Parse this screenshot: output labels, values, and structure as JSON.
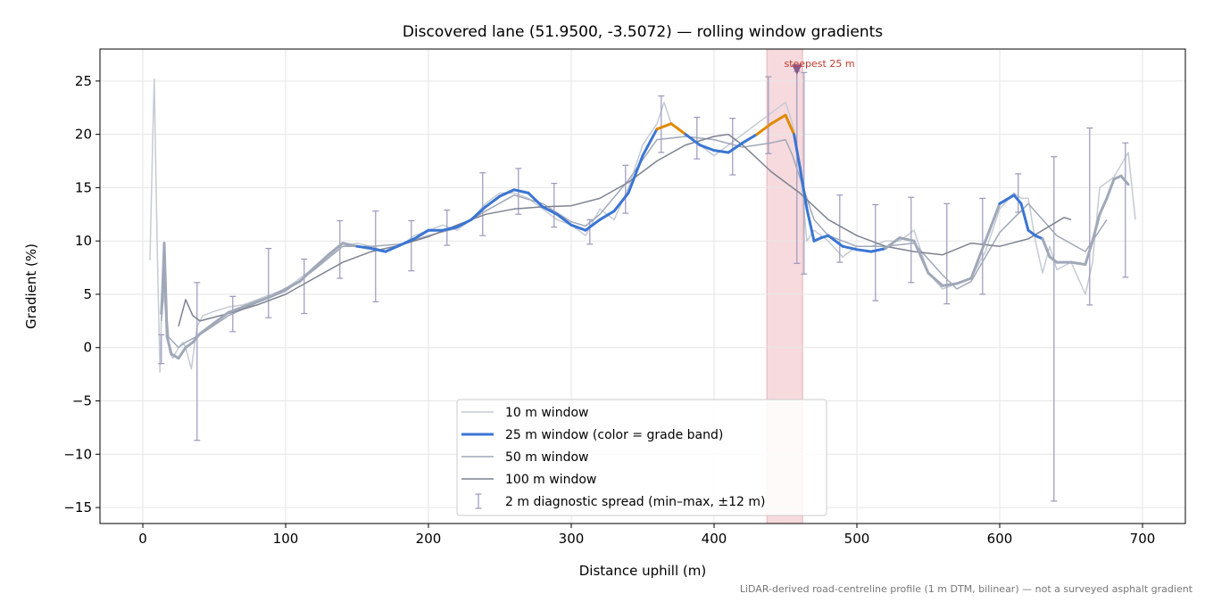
{
  "chart_data": {
    "type": "line",
    "title": "Discovered lane (51.9500, -3.5072) — rolling window gradients",
    "xlabel": "Distance uphill (m)",
    "ylabel": "Gradient (%)",
    "xlim": [
      -30,
      730
    ],
    "ylim": [
      -16.5,
      28
    ],
    "xticks": [
      0,
      100,
      200,
      300,
      400,
      500,
      600,
      700
    ],
    "xtick_labels": [
      "0",
      "100",
      "200",
      "300",
      "400",
      "500",
      "600",
      "700"
    ],
    "yticks": [
      -15,
      -10,
      -5,
      0,
      5,
      10,
      15,
      20,
      25
    ],
    "ytick_labels": [
      "−15",
      "−10",
      "−5",
      "0",
      "5",
      "10",
      "15",
      "20",
      "25"
    ],
    "grid": true,
    "legend_position": "lower-center",
    "footnote": "LiDAR-derived road-centreline profile (1 m DTM, bilinear) — not a surveyed asphalt gradient",
    "steepest": {
      "label": "steepest 25 m",
      "x_start": 437,
      "x_end": 462,
      "marker": [
        458,
        26
      ],
      "color": "#c0392b"
    },
    "colors": {
      "w10": "#c5cbd3",
      "w25": "#3a75d4",
      "w25_steep": "#e08a00",
      "w50": "#a0a8b8",
      "w100": "#7d8291",
      "errbar": "#9a98be",
      "band": "#f6dadd"
    },
    "series": [
      {
        "name": "10 m window",
        "key": "w10",
        "x": [
          5,
          7,
          8,
          10,
          12,
          13,
          15,
          17,
          19,
          21,
          25,
          28,
          30,
          34,
          38,
          42,
          50,
          60,
          70,
          80,
          90,
          100,
          110,
          120,
          130,
          140,
          150,
          160,
          170,
          180,
          190,
          200,
          210,
          220,
          230,
          240,
          250,
          260,
          270,
          280,
          290,
          300,
          310,
          320,
          330,
          340,
          350,
          360,
          365,
          370,
          380,
          390,
          400,
          410,
          420,
          430,
          440,
          450,
          455,
          460,
          465,
          470,
          480,
          490,
          500,
          510,
          520,
          530,
          540,
          550,
          560,
          570,
          580,
          590,
          600,
          610,
          615,
          620,
          625,
          630,
          635,
          640,
          650,
          660,
          665,
          670,
          680,
          690,
          695
        ],
        "y": [
          8.2,
          20,
          25.2,
          10,
          -2.3,
          3,
          5,
          1,
          -0.5,
          -1,
          0,
          0.5,
          0,
          -2,
          2,
          3,
          3.4,
          3.8,
          4,
          4.5,
          5,
          5.5,
          6.5,
          7.5,
          8.5,
          9.5,
          9.8,
          9.5,
          9,
          9.5,
          10.5,
          11,
          11.5,
          11,
          12,
          13.5,
          14.5,
          14.5,
          14,
          13,
          12,
          11.5,
          10.5,
          13,
          12,
          15,
          19,
          21,
          23,
          21,
          20,
          19,
          18,
          19,
          20,
          21,
          22,
          23,
          21,
          17,
          10,
          11,
          10,
          8.5,
          9.5,
          9.5,
          10,
          10,
          11,
          7,
          5.5,
          6,
          6.5,
          9,
          13,
          14.5,
          14,
          14,
          10,
          7,
          9.5,
          7.3,
          8,
          5,
          8,
          15,
          16,
          18.3,
          12
        ]
      },
      {
        "name": "25 m window (color = grade band)",
        "key": "w25",
        "x": [
          13,
          14,
          15,
          17,
          20,
          25,
          30,
          35,
          40,
          50,
          60,
          70,
          80,
          90,
          100,
          110,
          120,
          130,
          140,
          150,
          160,
          170,
          180,
          190,
          200,
          210,
          220,
          230,
          240,
          250,
          260,
          270,
          280,
          290,
          300,
          310,
          320,
          330,
          340,
          350,
          360,
          370,
          380,
          390,
          400,
          410,
          420,
          430,
          440,
          450,
          456,
          460,
          465,
          470,
          475,
          480,
          490,
          500,
          510,
          520,
          530,
          540,
          550,
          560,
          570,
          580,
          590,
          600,
          610,
          615,
          620,
          625,
          630,
          635,
          640,
          650,
          660,
          665,
          670,
          675,
          680,
          685,
          690
        ],
        "y": [
          3.2,
          6,
          9.8,
          1,
          -0.6,
          -1,
          0,
          0.5,
          1.3,
          2.3,
          3.3,
          3.8,
          4.3,
          4.8,
          5.5,
          6.2,
          7.5,
          8.7,
          9.8,
          9.5,
          9.3,
          9,
          9.6,
          10.2,
          11,
          11,
          11.3,
          12,
          13.2,
          14.2,
          14.8,
          14.5,
          13.2,
          12.5,
          11.5,
          11,
          12,
          12.8,
          14.5,
          18,
          20.5,
          21,
          20,
          19,
          18.5,
          18.3,
          19.2,
          20,
          21,
          21.8,
          20,
          17,
          13,
          10,
          10.3,
          10.5,
          9.5,
          9.2,
          9,
          9.3,
          10.3,
          10,
          7,
          5.8,
          6,
          6.5,
          10,
          13.5,
          14.3,
          13.5,
          11,
          10.5,
          10.2,
          8.5,
          8,
          8,
          7.8,
          10,
          12.5,
          14,
          15.8,
          16.1,
          15.3
        ]
      },
      {
        "name": "50 m window",
        "key": "w50",
        "x": [
          13,
          15,
          18,
          25,
          30,
          40,
          60,
          80,
          100,
          120,
          140,
          160,
          180,
          200,
          220,
          240,
          260,
          280,
          300,
          310,
          320,
          340,
          360,
          380,
          400,
          420,
          440,
          450,
          455,
          460,
          470,
          480,
          500,
          520,
          540,
          560,
          570,
          580,
          600,
          620,
          640,
          660,
          670,
          675
        ],
        "y": [
          2.5,
          6,
          1,
          0,
          0.5,
          1.2,
          3,
          4.2,
          5.3,
          7.3,
          9.5,
          9.5,
          9.7,
          10.5,
          11.2,
          12.8,
          14.3,
          13.5,
          11.8,
          11.4,
          12.5,
          15.7,
          19.5,
          19.8,
          19.5,
          18.8,
          19.2,
          19.5,
          18,
          16,
          12,
          10.5,
          9.5,
          9.5,
          9.8,
          6.8,
          5.5,
          6.2,
          10.8,
          13.5,
          10.5,
          9,
          11,
          12
        ]
      },
      {
        "name": "100 m window",
        "key": "w100",
        "x": [
          25,
          30,
          35,
          40,
          60,
          80,
          100,
          120,
          140,
          160,
          180,
          200,
          220,
          240,
          260,
          280,
          300,
          320,
          340,
          360,
          380,
          400,
          410,
          420,
          440,
          460,
          480,
          500,
          520,
          540,
          560,
          580,
          600,
          620,
          640,
          645,
          650
        ],
        "y": [
          2,
          4.5,
          3,
          2.5,
          3.2,
          4,
          5,
          6.5,
          8,
          9,
          9.6,
          10.4,
          11.5,
          12.5,
          13,
          13.2,
          13.3,
          14,
          15.5,
          17.5,
          19,
          19.8,
          20,
          19,
          16.5,
          14.5,
          12,
          10.5,
          9.5,
          9,
          8.7,
          9.8,
          9.5,
          10.2,
          11.8,
          12.2,
          12
        ]
      }
    ],
    "errorbars": {
      "name": "2 m diagnostic spread (min–max, ±12 m)",
      "x": [
        13,
        38,
        63,
        88,
        113,
        138,
        163,
        188,
        213,
        238,
        263,
        288,
        313,
        338,
        363,
        388,
        413,
        438,
        458,
        463,
        488,
        513,
        538,
        563,
        588,
        613,
        638,
        663,
        688
      ],
      "low": [
        -1.5,
        -8.7,
        1.5,
        2.8,
        3.2,
        6.5,
        4.3,
        7.2,
        9.6,
        10.5,
        12.5,
        11.3,
        9.7,
        12.6,
        18.3,
        17.7,
        16.2,
        18.2,
        7.9,
        6.9,
        8,
        4.4,
        6.1,
        4.1,
        5,
        12.7,
        -14.4,
        4,
        6.6
      ],
      "high": [
        1.2,
        6.1,
        4.8,
        9.3,
        8.3,
        11.9,
        12.8,
        11.9,
        12.9,
        16.4,
        16.8,
        15.4,
        12,
        17.1,
        23.6,
        21.6,
        21.5,
        25.4,
        25.9,
        25.8,
        14.3,
        13.4,
        14.1,
        13.5,
        14,
        16.3,
        17.9,
        20.6,
        19.2
      ]
    }
  }
}
